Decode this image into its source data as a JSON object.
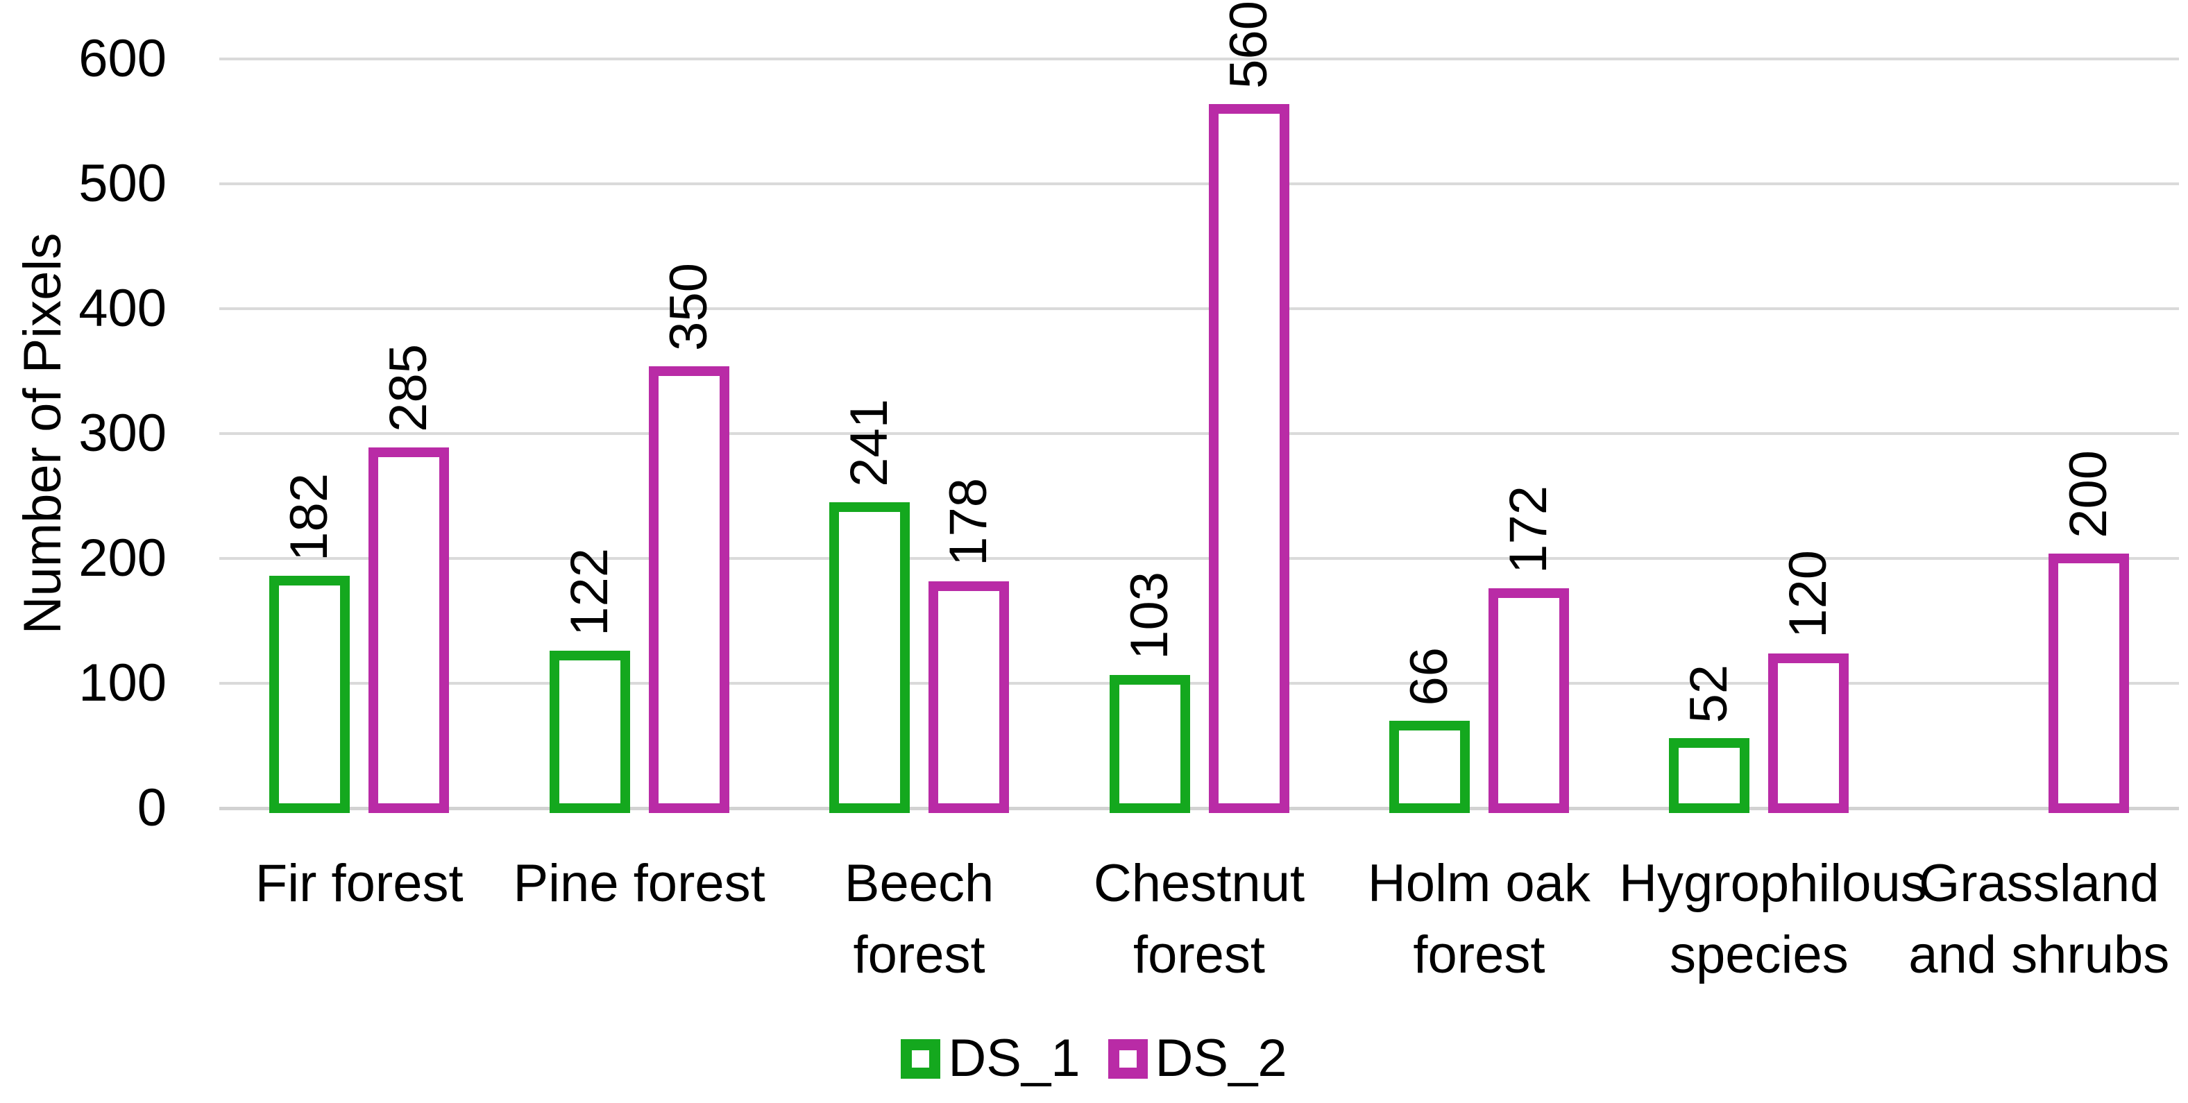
{
  "chart_data": {
    "type": "bar",
    "title": "",
    "xlabel": "",
    "ylabel": "Number of Pixels",
    "ylim": [
      0,
      600
    ],
    "yticks": [
      0,
      100,
      200,
      300,
      400,
      500,
      600
    ],
    "grid": "horizontal-light-gray",
    "legend_position": "bottom-center",
    "bar_style": "hollow-outline-white-fill",
    "value_labels_rotation": "90-ccw-above-bars",
    "categories": [
      "Fir forest",
      "Pine forest",
      "Beech forest",
      "Chestnut\nforest",
      "Holm oak\nforest",
      "Hygrophilous\nspecies",
      "Grassland\nand shrubs"
    ],
    "series": [
      {
        "name": "DS_1",
        "color": "#14A81E",
        "values": [
          182,
          122,
          241,
          103,
          66,
          52,
          null
        ]
      },
      {
        "name": "DS_2",
        "color": "#B92BA6",
        "values": [
          285,
          350,
          178,
          560,
          172,
          120,
          200
        ]
      }
    ]
  }
}
